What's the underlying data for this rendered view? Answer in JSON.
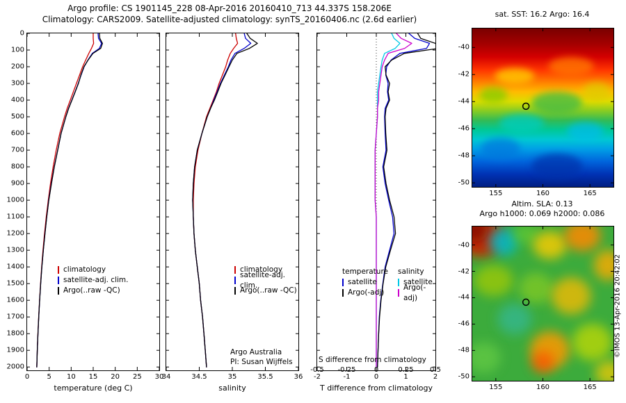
{
  "header": {
    "title_line1": "Argo profile: CS 1901145_228 08-Apr-2016 20160410_713 44.337S 158.206E",
    "title_line2": "Climatology: CARS2009. Satellite-adjusted climatology: synTS_20160406.nc (2.6d earlier)"
  },
  "annotations": {
    "argo_australia": "Argo Australia",
    "pi": "PI: Susan Wijffels"
  },
  "watermark": "©IMOS 13-Apr-2016 20:42:02",
  "chart_data": [
    {
      "type": "line",
      "name": "temperature_profile",
      "title": "",
      "xlabel": "temperature (deg C)",
      "ylabel": "",
      "xlim": [
        0,
        30
      ],
      "ylim": [
        0,
        2020
      ],
      "x_ticks": [
        0,
        5,
        10,
        15,
        20,
        25,
        30
      ],
      "y_ticks": [
        0,
        100,
        200,
        300,
        400,
        500,
        600,
        700,
        800,
        900,
        1000,
        1100,
        1200,
        1300,
        1400,
        1500,
        1600,
        1700,
        1800,
        1900,
        2000
      ],
      "show_y_labels": true,
      "depths": [
        0,
        30,
        60,
        90,
        120,
        160,
        200,
        250,
        300,
        350,
        400,
        450,
        500,
        600,
        700,
        800,
        900,
        1000,
        1100,
        1200,
        1300,
        1400,
        1500,
        1600,
        1700,
        1800,
        1900,
        2000
      ],
      "series": [
        {
          "name": "climatology",
          "color": "#cc0000",
          "values": [
            15.0,
            15.0,
            15.1,
            14.6,
            14.0,
            13.3,
            12.6,
            11.9,
            11.2,
            10.5,
            9.8,
            9.1,
            8.5,
            7.4,
            6.6,
            5.9,
            5.3,
            4.8,
            4.35,
            3.95,
            3.6,
            3.3,
            3.05,
            2.82,
            2.62,
            2.45,
            2.3,
            2.2
          ]
        },
        {
          "name": "satellite-adj. clim.",
          "color": "#0000cc",
          "values": [
            16.1,
            16.2,
            16.9,
            16.4,
            14.8,
            13.8,
            12.95,
            12.25,
            11.6,
            10.9,
            10.15,
            9.4,
            8.8,
            7.7,
            6.93,
            6.15,
            5.5,
            4.9,
            4.45,
            4.05,
            3.68,
            3.35,
            3.08,
            2.84,
            2.63,
            2.46,
            2.31,
            2.2
          ]
        },
        {
          "name": "Argo(..raw -QC)",
          "color": "#000000",
          "values": [
            16.4,
            16.5,
            17.1,
            16.7,
            14.95,
            13.85,
            12.9,
            12.2,
            11.65,
            10.92,
            10.18,
            9.42,
            8.8,
            7.7,
            6.95,
            6.18,
            5.52,
            4.92,
            4.46,
            4.06,
            3.68,
            3.35,
            3.08,
            2.84,
            2.63,
            2.46,
            2.31,
            2.2
          ]
        }
      ]
    },
    {
      "type": "line",
      "name": "salinity_profile",
      "title": "",
      "xlabel": "salinity",
      "ylabel": "",
      "xlim": [
        34,
        36
      ],
      "ylim": [
        0,
        2020
      ],
      "x_ticks": [
        34,
        34.5,
        35,
        35.5,
        36
      ],
      "y_ticks": [
        0,
        100,
        200,
        300,
        400,
        500,
        600,
        700,
        800,
        900,
        1000,
        1100,
        1200,
        1300,
        1400,
        1500,
        1600,
        1700,
        1800,
        1900,
        2000
      ],
      "show_y_labels": false,
      "depths": [
        0,
        30,
        60,
        90,
        120,
        160,
        200,
        250,
        300,
        350,
        400,
        450,
        500,
        600,
        700,
        800,
        900,
        1000,
        1100,
        1200,
        1300,
        1400,
        1500,
        1600,
        1700,
        1800,
        1900,
        2000
      ],
      "series": [
        {
          "name": "climatology",
          "color": "#cc0000",
          "values": [
            35.05,
            35.06,
            35.08,
            35.02,
            34.97,
            34.93,
            34.9,
            34.85,
            34.8,
            34.76,
            34.71,
            34.66,
            34.61,
            34.54,
            34.48,
            34.44,
            34.42,
            34.41,
            34.41,
            34.42,
            34.44,
            34.47,
            34.5,
            34.52,
            34.55,
            34.57,
            34.59,
            34.61
          ]
        },
        {
          "name": "satellite-adj. clim.",
          "color": "#0000cc",
          "values": [
            35.18,
            35.2,
            35.28,
            35.18,
            35.04,
            34.98,
            34.94,
            34.88,
            34.82,
            34.77,
            34.72,
            34.67,
            34.62,
            34.54,
            34.47,
            34.43,
            34.41,
            34.4,
            34.41,
            34.42,
            34.44,
            34.47,
            34.5,
            34.52,
            34.55,
            34.57,
            34.59,
            34.61
          ]
        },
        {
          "name": "Argo(..raw -QC)",
          "color": "#000000",
          "values": [
            35.22,
            35.27,
            35.38,
            35.26,
            35.07,
            35.0,
            34.95,
            34.89,
            34.83,
            34.78,
            34.73,
            34.67,
            34.62,
            34.54,
            34.47,
            34.43,
            34.41,
            34.4,
            34.41,
            34.42,
            34.44,
            34.47,
            34.5,
            34.52,
            34.55,
            34.57,
            34.59,
            34.61
          ]
        }
      ]
    },
    {
      "type": "line",
      "name": "difference_profile",
      "title": "",
      "xlabel": "T difference from climatology",
      "s_axis_label": "S difference from climatology",
      "ylabel": "",
      "xlim": [
        -2,
        2
      ],
      "ylim": [
        0,
        2020
      ],
      "x_ticks": [
        -2,
        -1,
        0,
        1,
        2
      ],
      "s_xlim": [
        -0.5,
        0.5
      ],
      "s_ticks": [
        -0.5,
        -0.25,
        0,
        0.25,
        0.5
      ],
      "zero_line": true,
      "show_y_labels": false,
      "y_ticks": [
        0,
        100,
        200,
        300,
        400,
        500,
        600,
        700,
        800,
        900,
        1000,
        1100,
        1200,
        1300,
        1400,
        1500,
        1600,
        1700,
        1800,
        1900,
        2000
      ],
      "depths": [
        0,
        30,
        60,
        90,
        120,
        160,
        200,
        250,
        300,
        350,
        400,
        450,
        500,
        600,
        700,
        800,
        900,
        1000,
        1100,
        1200,
        1300,
        1400,
        1500,
        1600,
        1700,
        1800,
        1900,
        2000
      ],
      "series": [
        {
          "name": "satellite",
          "group": "temperature",
          "scale": "T",
          "color": "#0000cc",
          "values": [
            1.1,
            1.3,
            1.8,
            1.7,
            0.8,
            0.5,
            0.35,
            0.32,
            0.4,
            0.38,
            0.42,
            0.3,
            0.28,
            0.3,
            0.33,
            0.22,
            0.3,
            0.42,
            0.55,
            0.6,
            0.45,
            0.3,
            0.22,
            0.15,
            0.1,
            0.08,
            0.06,
            0.04
          ]
        },
        {
          "name": "Argo(-adj)",
          "group": "temperature",
          "scale": "T",
          "color": "#000000",
          "values": [
            1.4,
            1.5,
            2.0,
            2.1,
            0.95,
            0.52,
            0.3,
            0.33,
            0.45,
            0.4,
            0.45,
            0.33,
            0.3,
            0.32,
            0.36,
            0.25,
            0.33,
            0.45,
            0.6,
            0.65,
            0.48,
            0.32,
            0.23,
            0.16,
            0.11,
            0.08,
            0.06,
            0.04
          ]
        },
        {
          "name": "satellite",
          "group": "salinity",
          "scale": "S",
          "color": "#00c8e6",
          "values": [
            0.13,
            0.15,
            0.2,
            0.16,
            0.07,
            0.05,
            0.04,
            0.03,
            0.02,
            0.01,
            0.01,
            0.01,
            0.01,
            0.0,
            -0.01,
            -0.01,
            -0.01,
            -0.01,
            0.0,
            0.0,
            0.0,
            0.0,
            0.0,
            0.0,
            0.0,
            0.0,
            0.0,
            0.0
          ]
        },
        {
          "name": "Argo(-adj)",
          "group": "salinity",
          "scale": "S",
          "color": "#cc00cc",
          "values": [
            0.17,
            0.21,
            0.3,
            0.24,
            0.1,
            0.07,
            0.05,
            0.04,
            0.03,
            0.02,
            0.02,
            0.01,
            0.01,
            0.0,
            -0.01,
            -0.01,
            -0.01,
            -0.01,
            0.0,
            0.0,
            0.0,
            0.0,
            0.0,
            0.0,
            0.0,
            0.0,
            0.0,
            0.0
          ]
        }
      ]
    },
    {
      "type": "heatmap",
      "name": "sst_map",
      "title": "sat. SST: 16.2 Argo: 16.4",
      "x_ticks": [
        155,
        160,
        165
      ],
      "y_ticks": [
        -40,
        -42,
        -44,
        -46,
        -48,
        -50
      ],
      "lon_range": [
        152.5,
        167.5
      ],
      "lat_range": [
        -38.6,
        -50.3
      ],
      "marker": {
        "lon": 158.2,
        "lat": -44.34
      },
      "blur": 5,
      "gradient": [
        {
          "offset": 0.0,
          "color": "#7a0000"
        },
        {
          "offset": 0.1,
          "color": "#a50000"
        },
        {
          "offset": 0.18,
          "color": "#d40000"
        },
        {
          "offset": 0.26,
          "color": "#ff3300"
        },
        {
          "offset": 0.33,
          "color": "#ff7700"
        },
        {
          "offset": 0.4,
          "color": "#ffbb00"
        },
        {
          "offset": 0.46,
          "color": "#dddd00"
        },
        {
          "offset": 0.52,
          "color": "#88cc22"
        },
        {
          "offset": 0.58,
          "color": "#33bb55"
        },
        {
          "offset": 0.64,
          "color": "#00c896"
        },
        {
          "offset": 0.7,
          "color": "#00c8d2"
        },
        {
          "offset": 0.76,
          "color": "#00a0e6"
        },
        {
          "offset": 0.84,
          "color": "#0064dc"
        },
        {
          "offset": 0.92,
          "color": "#0032b4"
        },
        {
          "offset": 1.0,
          "color": "#001e82"
        }
      ],
      "blobs": [
        {
          "x": 0.3,
          "y": 0.3,
          "rx": 0.14,
          "ry": 0.05,
          "color": "#ffcc00",
          "op": 0.8
        },
        {
          "x": 0.7,
          "y": 0.24,
          "rx": 0.16,
          "ry": 0.06,
          "color": "#ff7700",
          "op": 0.8
        },
        {
          "x": 0.15,
          "y": 0.42,
          "rx": 0.1,
          "ry": 0.05,
          "color": "#88cc00",
          "op": 0.8
        },
        {
          "x": 0.6,
          "y": 0.47,
          "rx": 0.18,
          "ry": 0.07,
          "color": "#44bb44",
          "op": 0.8
        },
        {
          "x": 0.88,
          "y": 0.4,
          "rx": 0.1,
          "ry": 0.06,
          "color": "#ddcc00",
          "op": 0.7
        },
        {
          "x": 0.35,
          "y": 0.6,
          "rx": 0.16,
          "ry": 0.06,
          "color": "#00ccbb",
          "op": 0.8
        },
        {
          "x": 0.8,
          "y": 0.65,
          "rx": 0.13,
          "ry": 0.06,
          "color": "#00bbee",
          "op": 0.7
        },
        {
          "x": 0.2,
          "y": 0.76,
          "rx": 0.14,
          "ry": 0.07,
          "color": "#0077dd",
          "op": 0.7
        },
        {
          "x": 0.6,
          "y": 0.87,
          "rx": 0.18,
          "ry": 0.08,
          "color": "#0033aa",
          "op": 0.7
        }
      ]
    },
    {
      "type": "heatmap",
      "name": "sla_map",
      "title": "Altim. SLA: 0.13",
      "subtitle": "Argo h1000: 0.069 h2000: 0.086",
      "x_ticks": [
        155,
        160,
        165
      ],
      "y_ticks": [
        -40,
        -42,
        -44,
        -46,
        -48,
        -50
      ],
      "lon_range": [
        152.5,
        167.5
      ],
      "lat_range": [
        -38.6,
        -50.3
      ],
      "marker": {
        "lon": 158.2,
        "lat": -44.34
      },
      "blur": 8,
      "base": "#3cab3c",
      "blobs": [
        {
          "x": 0.06,
          "y": 0.07,
          "rx": 0.17,
          "ry": 0.13,
          "color": "#cc2200",
          "op": 0.9
        },
        {
          "x": 0.01,
          "y": 0.02,
          "rx": 0.1,
          "ry": 0.08,
          "color": "#881100",
          "op": 0.9
        },
        {
          "x": 0.22,
          "y": 0.1,
          "rx": 0.1,
          "ry": 0.09,
          "color": "#00bbcc",
          "op": 0.85
        },
        {
          "x": 0.38,
          "y": 0.05,
          "rx": 0.09,
          "ry": 0.06,
          "color": "#66cc33",
          "op": 0.7
        },
        {
          "x": 0.55,
          "y": 0.12,
          "rx": 0.12,
          "ry": 0.09,
          "color": "#ffcc00",
          "op": 0.8
        },
        {
          "x": 0.78,
          "y": 0.06,
          "rx": 0.13,
          "ry": 0.1,
          "color": "#ff8800",
          "op": 0.85
        },
        {
          "x": 0.96,
          "y": 0.25,
          "rx": 0.1,
          "ry": 0.1,
          "color": "#ffaa00",
          "op": 0.8
        },
        {
          "x": 0.15,
          "y": 0.35,
          "rx": 0.14,
          "ry": 0.1,
          "color": "#aacc00",
          "op": 0.7
        },
        {
          "x": 0.45,
          "y": 0.4,
          "rx": 0.12,
          "ry": 0.1,
          "color": "#88cc22",
          "op": 0.7
        },
        {
          "x": 0.7,
          "y": 0.45,
          "rx": 0.14,
          "ry": 0.12,
          "color": "#ffbb00",
          "op": 0.75
        },
        {
          "x": 0.3,
          "y": 0.6,
          "rx": 0.12,
          "ry": 0.1,
          "color": "#33bbaa",
          "op": 0.6
        },
        {
          "x": 0.55,
          "y": 0.8,
          "rx": 0.14,
          "ry": 0.12,
          "color": "#ff9900",
          "op": 0.85
        },
        {
          "x": 0.5,
          "y": 0.88,
          "rx": 0.08,
          "ry": 0.07,
          "color": "#ff5500",
          "op": 0.8
        },
        {
          "x": 0.85,
          "y": 0.75,
          "rx": 0.14,
          "ry": 0.12,
          "color": "#ccdd00",
          "op": 0.7
        },
        {
          "x": 0.08,
          "y": 0.85,
          "rx": 0.12,
          "ry": 0.1,
          "color": "#66cc44",
          "op": 0.7
        },
        {
          "x": 0.97,
          "y": 0.95,
          "rx": 0.1,
          "ry": 0.08,
          "color": "#ffcc00",
          "op": 0.7
        }
      ]
    }
  ]
}
